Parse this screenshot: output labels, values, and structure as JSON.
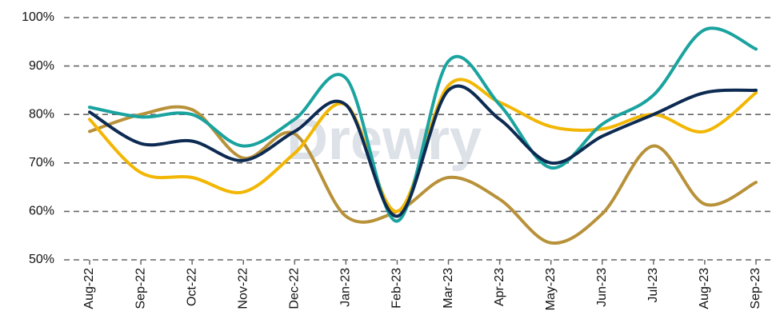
{
  "chart_data": {
    "type": "line",
    "watermark": "Drewry",
    "categories": [
      "Aug-22",
      "Sep-22",
      "Oct-22",
      "Nov-22",
      "Dec-22",
      "Jan-23",
      "Feb-23",
      "Mar-23",
      "Apr-23",
      "May-23",
      "Jun-23",
      "Jul-23",
      "Aug-23",
      "Sep-23"
    ],
    "series": [
      {
        "color": "#b8923a",
        "values": [
          76.5,
          80,
          81,
          71,
          76,
          59,
          60,
          67,
          62.5,
          53.5,
          59.5,
          73.5,
          61.5,
          66
        ]
      },
      {
        "color": "#f2b705",
        "values": [
          79,
          68,
          67,
          64,
          72,
          82,
          60,
          86,
          82.5,
          77.5,
          77,
          80,
          76.5,
          84.5
        ]
      },
      {
        "color": "#1aa39f",
        "values": [
          81.5,
          79.5,
          80,
          73.5,
          79,
          87.5,
          58,
          91,
          82,
          69,
          78,
          84,
          97.5,
          93.5
        ]
      },
      {
        "color": "#0d2b52",
        "values": [
          80.5,
          74,
          74.5,
          70.5,
          76.5,
          82,
          59,
          85,
          79,
          70,
          75.5,
          80,
          84.5,
          85
        ]
      }
    ],
    "ylim": [
      50,
      100
    ],
    "yticks": [
      {
        "value": 50,
        "label": "50%"
      },
      {
        "value": 60,
        "label": "60%"
      },
      {
        "value": 70,
        "label": "70%"
      },
      {
        "value": 80,
        "label": "80%"
      },
      {
        "value": 90,
        "label": "90%"
      },
      {
        "value": 100,
        "label": "100%"
      }
    ],
    "grid": true
  }
}
